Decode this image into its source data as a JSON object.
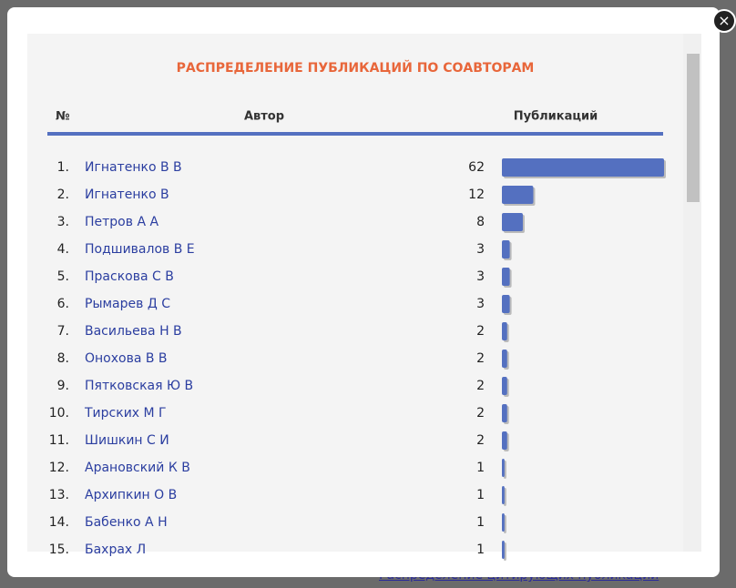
{
  "modal": {
    "title": "РАСПРЕДЕЛЕНИЕ ПУБЛИКАЦИЙ ПО СОАВТОРАМ",
    "table": {
      "headers": [
        "№",
        "Автор",
        "Публикаций"
      ],
      "rows": [
        {
          "rank": "1.",
          "author": "Игнатенко В В",
          "count": 62
        },
        {
          "rank": "2.",
          "author": "Игнатенко В",
          "count": 12
        },
        {
          "rank": "3.",
          "author": "Петров А А",
          "count": 8
        },
        {
          "rank": "4.",
          "author": "Подшивалов В Е",
          "count": 3
        },
        {
          "rank": "5.",
          "author": "Праскова С В",
          "count": 3
        },
        {
          "rank": "6.",
          "author": "Рымарев Д С",
          "count": 3
        },
        {
          "rank": "7.",
          "author": "Васильева Н В",
          "count": 2
        },
        {
          "rank": "8.",
          "author": "Онохова В В",
          "count": 2
        },
        {
          "rank": "9.",
          "author": "Пятковская Ю В",
          "count": 2
        },
        {
          "rank": "10.",
          "author": "Тирских М Г",
          "count": 2
        },
        {
          "rank": "11.",
          "author": "Шишкин С И",
          "count": 2
        },
        {
          "rank": "12.",
          "author": "Арановский К В",
          "count": 1
        },
        {
          "rank": "13.",
          "author": "Архипкин О В",
          "count": 1
        },
        {
          "rank": "14.",
          "author": "Бабенко А Н",
          "count": 1
        },
        {
          "rank": "15.",
          "author": "Бахрах Л",
          "count": 1
        }
      ]
    }
  },
  "background": {
    "link": "Распределение цитирующих публикаций"
  }
}
